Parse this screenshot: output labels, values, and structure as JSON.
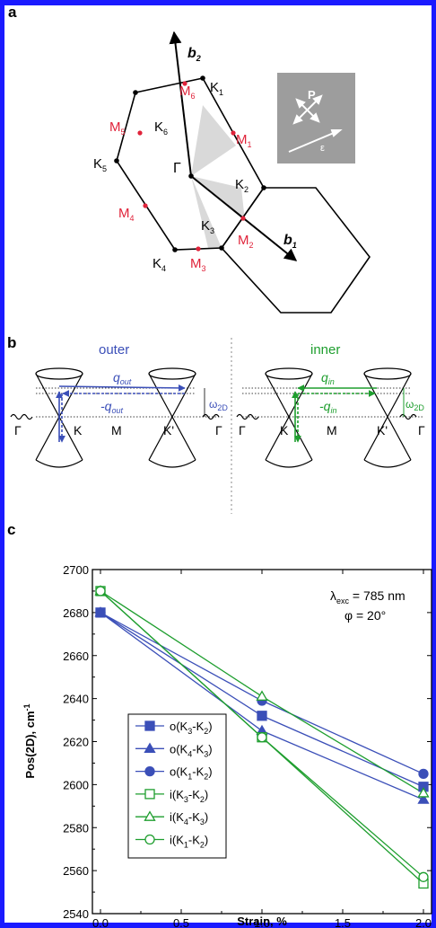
{
  "panels": {
    "a": "a",
    "b": "b",
    "c": "c"
  },
  "panel_a": {
    "points_black": {
      "G": "Γ",
      "K1": "K",
      "K2": "K",
      "K3": "K",
      "K4": "K",
      "K5": "K",
      "K6": "K"
    },
    "points_red": {
      "M1": "M",
      "M2": "M",
      "M3": "M",
      "M4": "M",
      "M5": "M",
      "M6": "M"
    },
    "subscripts": {
      "s1": "1",
      "s2": "2",
      "s3": "3",
      "s4": "4",
      "s5": "5",
      "s6": "6"
    },
    "vectors": {
      "b": "b",
      "b1_sub": "1",
      "b2_sub": "2"
    },
    "inset": {
      "P": "P",
      "eps": "ε"
    },
    "colors": {
      "red": "#e0233a",
      "grey_inset": "#9d9d9d",
      "wedge": "#d9d9d9"
    }
  },
  "panel_b": {
    "outer_title": "outer",
    "inner_title": "inner",
    "q_out": "q",
    "q_out_sub": "out",
    "minus_q_out": "-q",
    "q_in": "q",
    "q_in_sub": "in",
    "minus_q_in": "-q",
    "omega_2d": "ω",
    "omega_sub": "2D",
    "gamma": "Γ",
    "K": "K",
    "M": "M",
    "Kp": "K'",
    "colors": {
      "outer": "#3b4fb8",
      "inner": "#1e9e2e"
    }
  },
  "chart_data": {
    "type": "line",
    "xlabel": "Strain, %",
    "ylabel": "Pos(2D), cm",
    "ylabel_sup": "-1",
    "xlim": [
      -0.05,
      2.05
    ],
    "ylim": [
      2540,
      2700
    ],
    "xticks": [
      "0.0",
      "0.5",
      "1.0",
      "1.5",
      "2.0"
    ],
    "yticks": [
      "2540",
      "2560",
      "2580",
      "2600",
      "2620",
      "2640",
      "2660",
      "2680",
      "2700"
    ],
    "annotation_lambda": "λ",
    "annotation_lambda_sub": "exc",
    "annotation_lambda_value": " = 785 nm",
    "annotation_phi": "φ = 20°",
    "x": [
      0.0,
      1.0,
      2.0
    ],
    "series": [
      {
        "name": "o(K3-K2)",
        "label": "o(K",
        "s1": "3",
        "mid": "-K",
        "s2": "2",
        "end": ")",
        "marker": "square",
        "filled": true,
        "color": "#3b4fb8",
        "values": [
          2680,
          2632,
          2599
        ]
      },
      {
        "name": "o(K4-K3)",
        "label": "o(K",
        "s1": "4",
        "mid": "-K",
        "s2": "3",
        "end": ")",
        "marker": "triangle",
        "filled": true,
        "color": "#3b4fb8",
        "values": [
          2680,
          2625,
          2593
        ]
      },
      {
        "name": "o(K1-K2)",
        "label": "o(K",
        "s1": "1",
        "mid": "-K",
        "s2": "2",
        "end": ")",
        "marker": "circle",
        "filled": true,
        "color": "#3b4fb8",
        "values": [
          2680,
          2639,
          2605
        ]
      },
      {
        "name": "i(K3-K2)",
        "label": "i(K",
        "s1": "3",
        "mid": "-K",
        "s2": "2",
        "end": ")",
        "marker": "square",
        "filled": false,
        "color": "#1e9e2e",
        "values": [
          2690,
          2622,
          2554
        ]
      },
      {
        "name": "i(K4-K3)",
        "label": "i(K",
        "s1": "4",
        "mid": "-K",
        "s2": "3",
        "end": ")",
        "marker": "triangle",
        "filled": false,
        "color": "#1e9e2e",
        "values": [
          2690,
          2641,
          2596
        ]
      },
      {
        "name": "i(K1-K2)",
        "label": "i(K",
        "s1": "1",
        "mid": "-K",
        "s2": "2",
        "end": ")",
        "marker": "circle",
        "filled": false,
        "color": "#1e9e2e",
        "values": [
          2690,
          2622,
          2557
        ]
      }
    ]
  }
}
